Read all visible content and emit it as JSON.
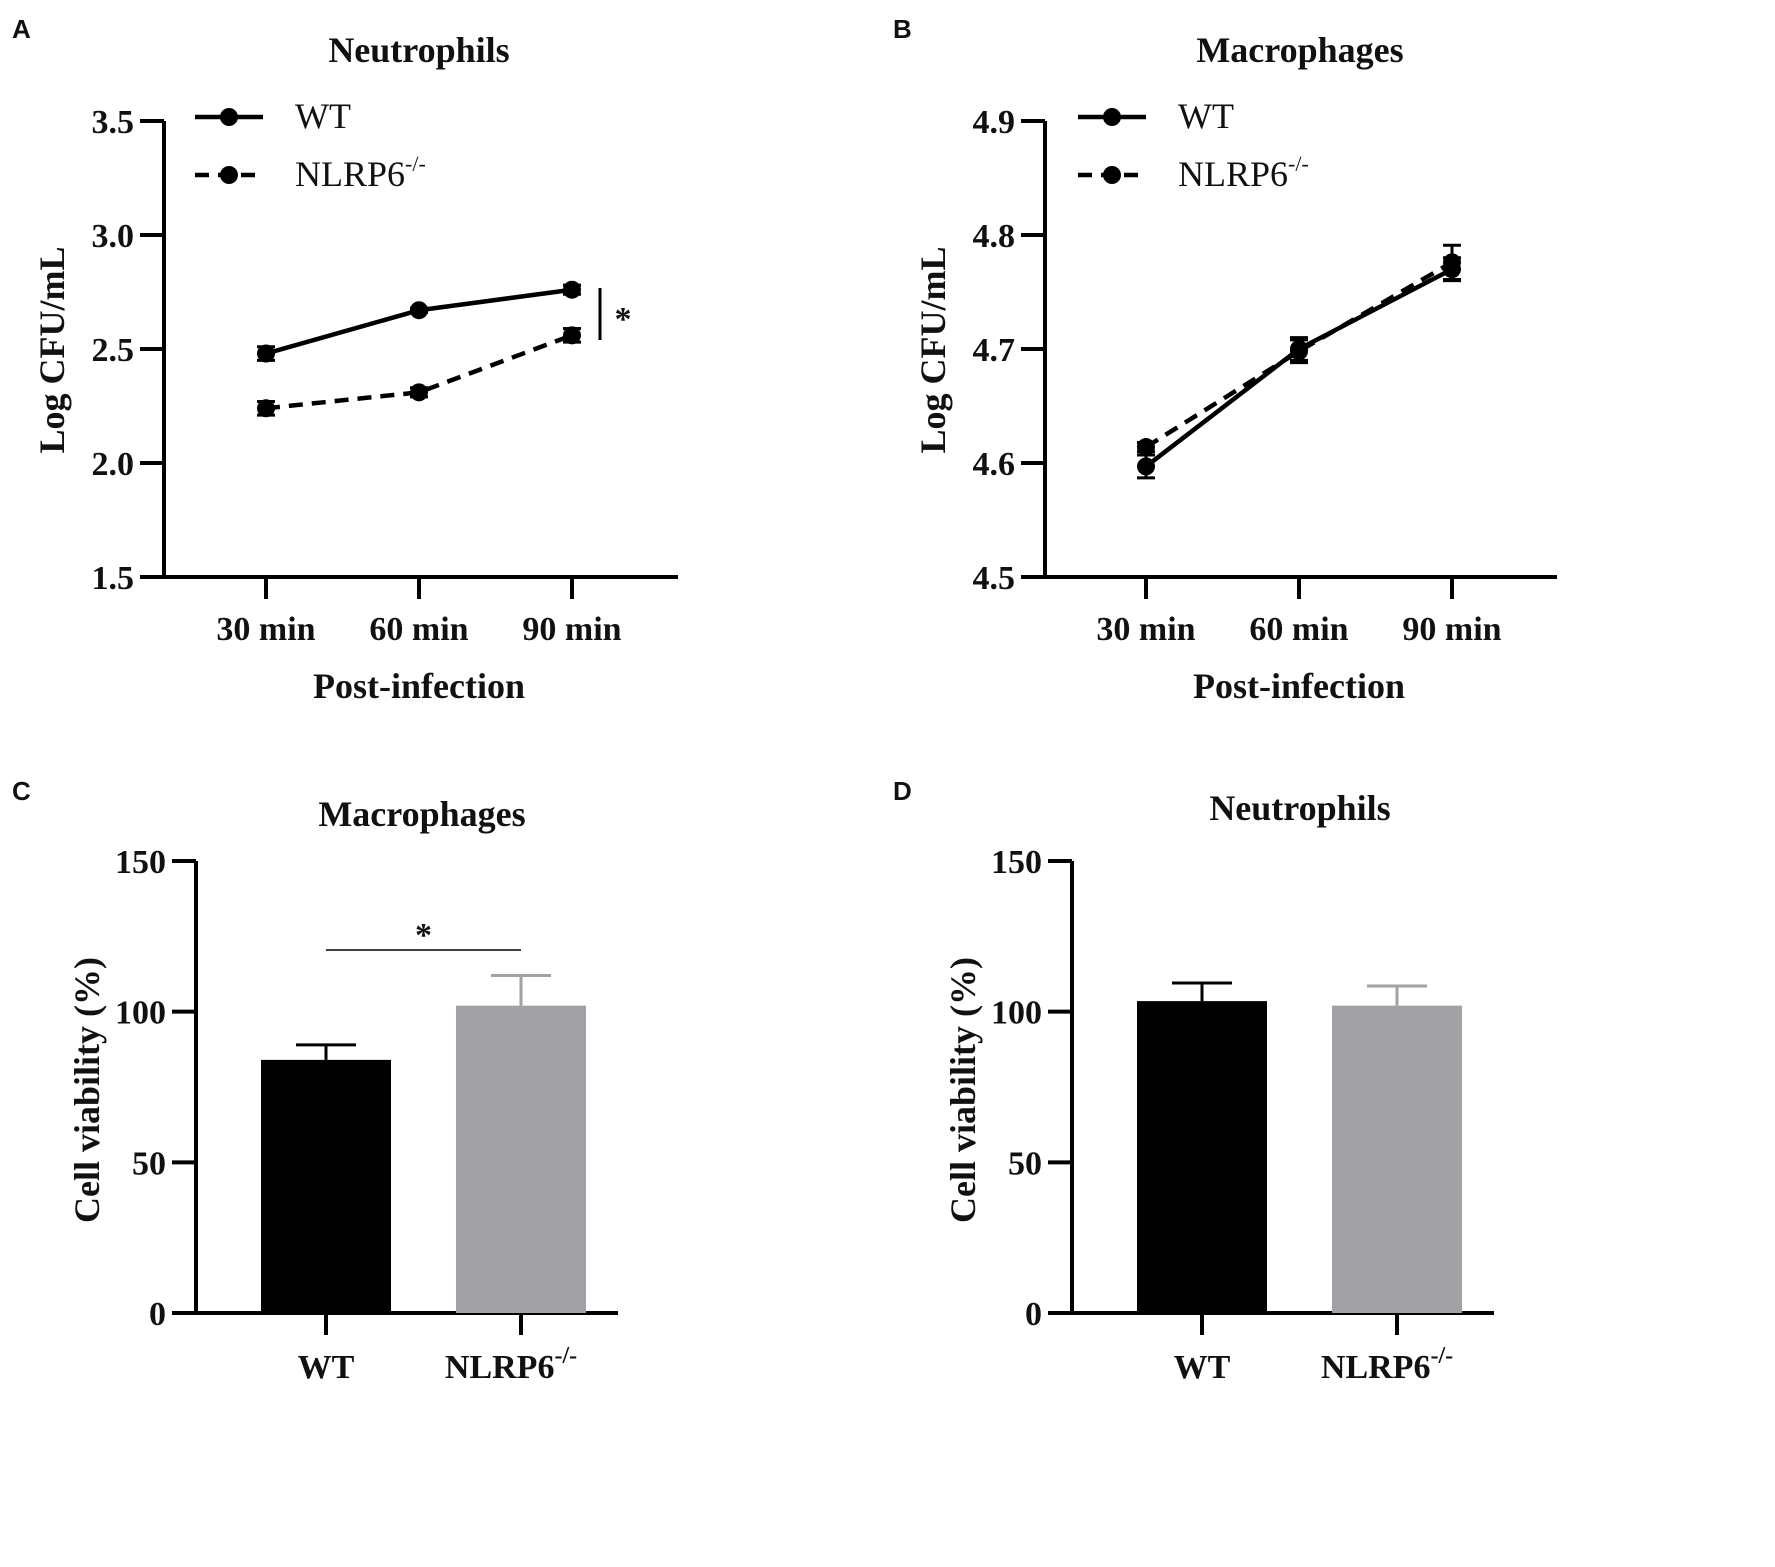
{
  "figure": {
    "panels": [
      "A",
      "B",
      "C",
      "D"
    ]
  },
  "chart_data": [
    {
      "panel": "A",
      "type": "line",
      "title": "Neutrophils",
      "xlabel": "Post-infection",
      "ylabel": "Log CFU/mL",
      "categories": [
        "30 min",
        "60 min",
        "90 min"
      ],
      "ylim": [
        1.5,
        3.5
      ],
      "yticks": [
        "1.5",
        "2.0",
        "2.5",
        "3.0",
        "3.5"
      ],
      "series": [
        {
          "name": "WT",
          "superscript": "",
          "style": "solid",
          "values": [
            2.48,
            2.67,
            2.76
          ],
          "errors": [
            0.03,
            0.01,
            0.02
          ]
        },
        {
          "name": "NLRP6",
          "superscript": "-/-",
          "style": "dashed",
          "values": [
            2.24,
            2.31,
            2.56
          ],
          "errors": [
            0.03,
            0.02,
            0.03
          ]
        }
      ],
      "significance": "*",
      "legend": "top-left"
    },
    {
      "panel": "B",
      "type": "line",
      "title": "Macrophages",
      "xlabel": "Post-infection",
      "ylabel": "Log CFU/mL",
      "categories": [
        "30 min",
        "60 min",
        "90 min"
      ],
      "ylim": [
        4.5,
        4.9
      ],
      "yticks": [
        "4.5",
        "4.6",
        "4.7",
        "4.8",
        "4.9"
      ],
      "series": [
        {
          "name": "WT",
          "superscript": "",
          "style": "solid",
          "values": [
            4.597,
            4.7,
            4.77
          ],
          "errors": [
            0.01,
            0.01,
            0.01
          ]
        },
        {
          "name": "NLRP6",
          "superscript": "-/-",
          "style": "dashed",
          "values": [
            4.614,
            4.698,
            4.776
          ],
          "errors": [
            0.004,
            0.01,
            0.015
          ]
        }
      ],
      "legend": "top-left"
    },
    {
      "panel": "C",
      "type": "bar",
      "title": "Macrophages",
      "xlabel": "",
      "ylabel": "Cell viability (%)",
      "categories": [
        {
          "name": "WT",
          "superscript": ""
        },
        {
          "name": "NLRP6",
          "superscript": "-/-"
        }
      ],
      "values": [
        84,
        102
      ],
      "errors": [
        5,
        10
      ],
      "colors": [
        "#000000",
        "#a2a2a6"
      ],
      "ylim": [
        0,
        150
      ],
      "yticks": [
        "0",
        "50",
        "100",
        "150"
      ],
      "significance": "*"
    },
    {
      "panel": "D",
      "type": "bar",
      "title": "Neutrophils",
      "xlabel": "",
      "ylabel": "Cell viability (%)",
      "categories": [
        {
          "name": "WT",
          "superscript": ""
        },
        {
          "name": "NLRP6",
          "superscript": "-/-"
        }
      ],
      "values": [
        103.5,
        102
      ],
      "errors": [
        6,
        6.5
      ],
      "colors": [
        "#000000",
        "#a2a2a6"
      ],
      "ylim": [
        0,
        150
      ],
      "yticks": [
        "0",
        "50",
        "100",
        "150"
      ]
    }
  ]
}
